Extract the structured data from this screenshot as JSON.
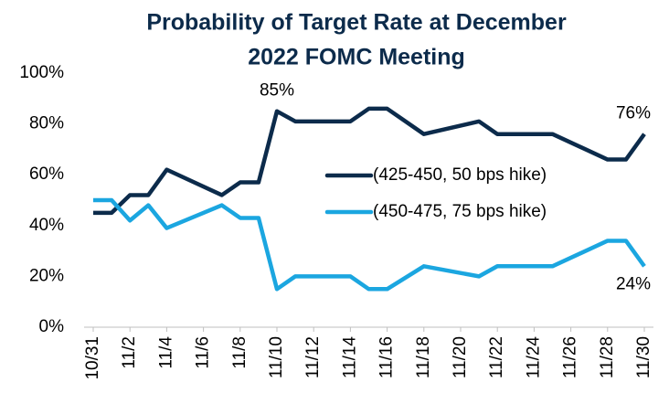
{
  "chart_data": {
    "type": "line",
    "title": [
      "Probability of Target Rate at December",
      "2022 FOMC Meeting"
    ],
    "x": [
      "10/31",
      "11/1",
      "11/2",
      "11/3",
      "11/4",
      "11/7",
      "11/8",
      "11/9",
      "11/10",
      "11/11",
      "11/14",
      "11/15",
      "11/16",
      "11/18",
      "11/21",
      "11/22",
      "11/25",
      "11/28",
      "11/29",
      "11/30"
    ],
    "series": [
      {
        "name": "(425-450, 50 bps hike)",
        "color": "#0c2b4b",
        "values": [
          45,
          45,
          52,
          52,
          62,
          52,
          57,
          57,
          85,
          81,
          81,
          86,
          86,
          76,
          81,
          76,
          76,
          66,
          66,
          76
        ]
      },
      {
        "name": "(450-475, 75 bps hike)",
        "color": "#1ba6e0",
        "values": [
          50,
          50,
          42,
          48,
          39,
          48,
          43,
          43,
          15,
          20,
          20,
          15,
          15,
          24,
          20,
          24,
          24,
          34,
          34,
          24
        ]
      }
    ],
    "xticks": [
      "10/31",
      "11/2",
      "11/4",
      "11/6",
      "11/8",
      "11/10",
      "11/12",
      "11/14",
      "11/16",
      "11/18",
      "11/20",
      "11/22",
      "11/24",
      "11/26",
      "11/28",
      "11/30"
    ],
    "ylim": [
      0,
      100
    ],
    "yticks": [
      {
        "value": 0,
        "label": "0%"
      },
      {
        "value": 20,
        "label": "20%"
      },
      {
        "value": 40,
        "label": "40%"
      },
      {
        "value": 60,
        "label": "60%"
      },
      {
        "value": 80,
        "label": "80%"
      },
      {
        "value": 100,
        "label": "100%"
      }
    ],
    "annotations": [
      {
        "text": "85%",
        "x": "11/10",
        "y": 85
      },
      {
        "text": "76%",
        "x": "11/30",
        "y": 76
      },
      {
        "text": "24%",
        "x": "11/30",
        "y": 24
      }
    ]
  }
}
